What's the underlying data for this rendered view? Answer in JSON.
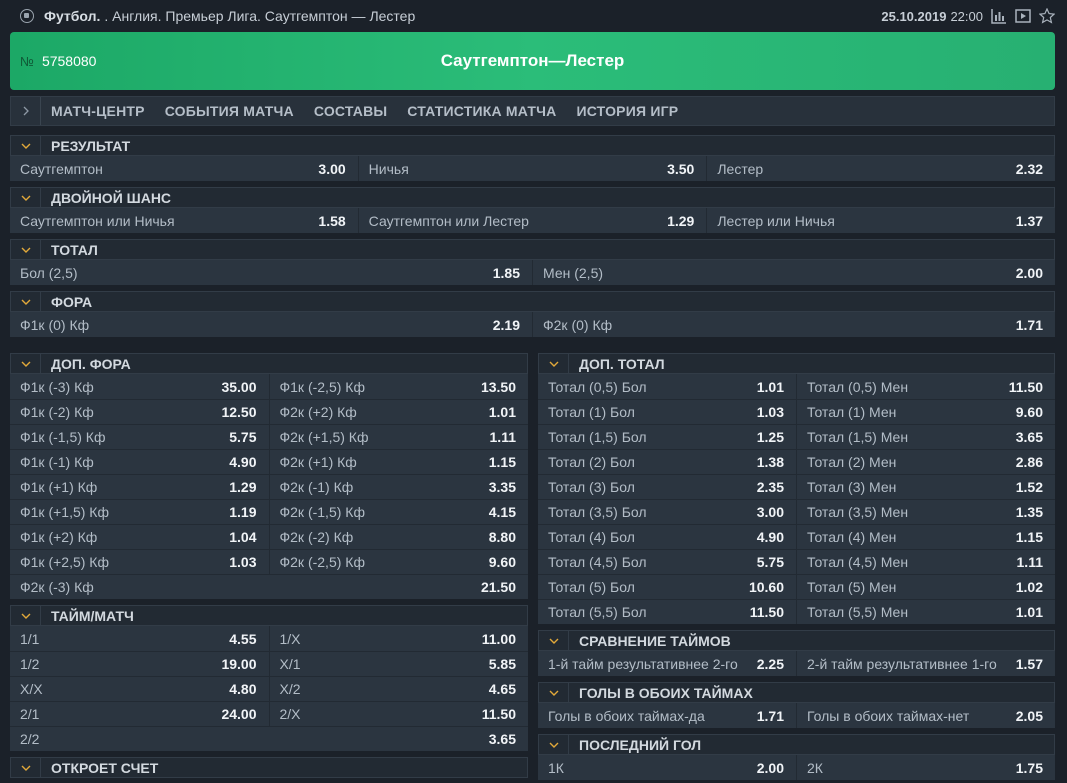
{
  "topbar": {
    "sport": "Футбол.",
    "path": ". Англия. Премьер Лига.  Саутгемптон — Лестер",
    "date": "25.10.2019",
    "time": "22:00"
  },
  "banner": {
    "num_label": "№",
    "num": "5758080",
    "title": "Саутгемптон—Лестер"
  },
  "tabs": [
    "МАТЧ-ЦЕНТР",
    "СОБЫТИЯ МАТЧА",
    "СОСТАВЫ",
    "СТАТИСТИКА МАТЧА",
    "ИСТОРИЯ ИГР"
  ],
  "sections": {
    "result": {
      "title": "РЕЗУЛЬТАТ",
      "rows": [
        [
          [
            "Саутгемптон",
            "3.00"
          ],
          [
            "Ничья",
            "3.50"
          ],
          [
            "Лестер",
            "2.32"
          ]
        ]
      ]
    },
    "double": {
      "title": "ДВОЙНОЙ ШАНС",
      "rows": [
        [
          [
            "Саутгемптон или Ничья",
            "1.58"
          ],
          [
            "Саутгемптон или Лестер",
            "1.29"
          ],
          [
            "Лестер или Ничья",
            "1.37"
          ]
        ]
      ]
    },
    "total": {
      "title": "ТОТАЛ",
      "rows": [
        [
          [
            "Бол (2,5)",
            "1.85"
          ],
          [
            "Мен (2,5)",
            "2.00"
          ]
        ]
      ]
    },
    "fora": {
      "title": "ФОРА",
      "rows": [
        [
          [
            "Ф1к (0) Кф",
            "2.19"
          ],
          [
            "Ф2к (0) Кф",
            "1.71"
          ]
        ]
      ]
    },
    "dop_fora": {
      "title": "ДОП. ФОРА",
      "rows": [
        [
          [
            "Ф1к (-3) Кф",
            "35.00"
          ],
          [
            "Ф1к (-2,5) Кф",
            "13.50"
          ]
        ],
        [
          [
            "Ф1к (-2) Кф",
            "12.50"
          ],
          [
            "Ф2к (+2) Кф",
            "1.01"
          ]
        ],
        [
          [
            "Ф1к (-1,5) Кф",
            "5.75"
          ],
          [
            "Ф2к (+1,5) Кф",
            "1.11"
          ]
        ],
        [
          [
            "Ф1к (-1) Кф",
            "4.90"
          ],
          [
            "Ф2к (+1) Кф",
            "1.15"
          ]
        ],
        [
          [
            "Ф1к (+1) Кф",
            "1.29"
          ],
          [
            "Ф2к (-1) Кф",
            "3.35"
          ]
        ],
        [
          [
            "Ф1к (+1,5) Кф",
            "1.19"
          ],
          [
            "Ф2к (-1,5) Кф",
            "4.15"
          ]
        ],
        [
          [
            "Ф1к (+2) Кф",
            "1.04"
          ],
          [
            "Ф2к (-2) Кф",
            "8.80"
          ]
        ],
        [
          [
            "Ф1к (+2,5) Кф",
            "1.03"
          ],
          [
            "Ф2к (-2,5) Кф",
            "9.60"
          ]
        ],
        [
          [
            "Ф2к (-3) Кф",
            "21.50"
          ]
        ]
      ]
    },
    "dop_total": {
      "title": "ДОП. ТОТАЛ",
      "rows": [
        [
          [
            "Тотал (0,5) Бол",
            "1.01"
          ],
          [
            "Тотал (0,5) Мен",
            "11.50"
          ]
        ],
        [
          [
            "Тотал (1) Бол",
            "1.03"
          ],
          [
            "Тотал (1) Мен",
            "9.60"
          ]
        ],
        [
          [
            "Тотал (1,5) Бол",
            "1.25"
          ],
          [
            "Тотал (1,5) Мен",
            "3.65"
          ]
        ],
        [
          [
            "Тотал (2) Бол",
            "1.38"
          ],
          [
            "Тотал (2) Мен",
            "2.86"
          ]
        ],
        [
          [
            "Тотал (3) Бол",
            "2.35"
          ],
          [
            "Тотал (3) Мен",
            "1.52"
          ]
        ],
        [
          [
            "Тотал (3,5) Бол",
            "3.00"
          ],
          [
            "Тотал (3,5) Мен",
            "1.35"
          ]
        ],
        [
          [
            "Тотал (4) Бол",
            "4.90"
          ],
          [
            "Тотал (4) Мен",
            "1.15"
          ]
        ],
        [
          [
            "Тотал (4,5) Бол",
            "5.75"
          ],
          [
            "Тотал (4,5) Мен",
            "1.11"
          ]
        ],
        [
          [
            "Тотал (5) Бол",
            "10.60"
          ],
          [
            "Тотал (5) Мен",
            "1.02"
          ]
        ],
        [
          [
            "Тотал (5,5) Бол",
            "11.50"
          ],
          [
            "Тотал (5,5) Мен",
            "1.01"
          ]
        ]
      ]
    },
    "halftime": {
      "title": "ТАЙМ/МАТЧ",
      "rows": [
        [
          [
            "1/1",
            "4.55"
          ],
          [
            "1/X",
            "11.00"
          ]
        ],
        [
          [
            "1/2",
            "19.00"
          ],
          [
            "X/1",
            "5.85"
          ]
        ],
        [
          [
            "X/X",
            "4.80"
          ],
          [
            "X/2",
            "4.65"
          ]
        ],
        [
          [
            "2/1",
            "24.00"
          ],
          [
            "2/X",
            "11.50"
          ]
        ],
        [
          [
            "2/2",
            "3.65"
          ]
        ]
      ]
    },
    "compare": {
      "title": "СРАВНЕНИЕ ТАЙМОВ",
      "rows": [
        [
          [
            "1-й тайм результативнее 2-го",
            "2.25"
          ],
          [
            "2-й тайм результативнее 1-го",
            "1.57"
          ]
        ]
      ]
    },
    "both_halves": {
      "title": "ГОЛЫ В ОБОИХ ТАЙМАХ",
      "rows": [
        [
          [
            "Голы в обоих таймах-да",
            "1.71"
          ],
          [
            "Голы в обоих таймах-нет",
            "2.05"
          ]
        ]
      ]
    },
    "last_goal": {
      "title": "ПОСЛЕДНИЙ ГОЛ",
      "rows": [
        [
          [
            "1К",
            "2.00"
          ],
          [
            "2К",
            "1.75"
          ]
        ]
      ]
    },
    "first_score": {
      "title": "ОТКРОЕТ СЧЕТ",
      "rows": []
    }
  },
  "icons": {
    "ball": "soccer-ball-icon",
    "stats": "stats-icon",
    "video": "video-icon",
    "star": "star-icon",
    "caret": "chevron-down-icon",
    "tab_arrow": "chevron-right-icon"
  }
}
